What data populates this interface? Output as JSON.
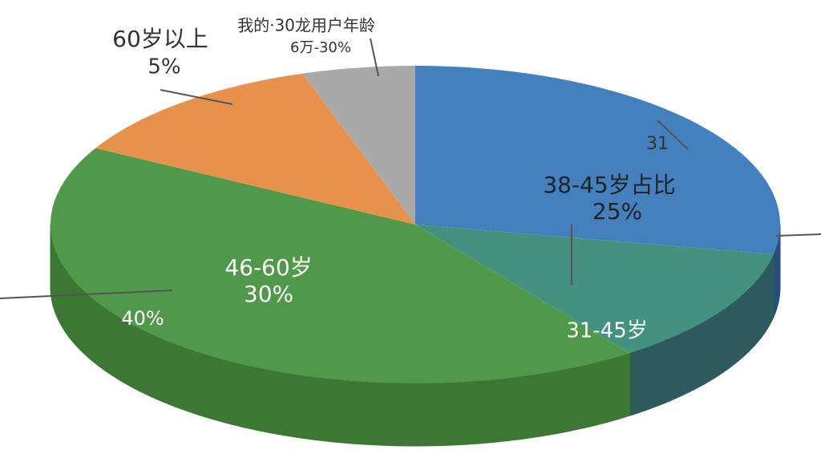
{
  "chart_data": {
    "type": "pie3d",
    "values": [
      28,
      12,
      43,
      12,
      5
    ],
    "colors": [
      "#4480bd",
      "#44917f",
      "#51994a",
      "#e7924c",
      "#a9a9a9"
    ],
    "side_colors": [
      "#264e78",
      "#2c5a5f",
      "#3d7734",
      "#b66e34",
      "#7d7d7d"
    ],
    "annotations": [
      "我的·30龙用户年龄",
      "6万-30%",
      "60岁以上",
      "5%",
      "31",
      "38-45岁占比",
      "25%",
      "46-60岁",
      "30%",
      "40%",
      "31-45岁"
    ]
  }
}
